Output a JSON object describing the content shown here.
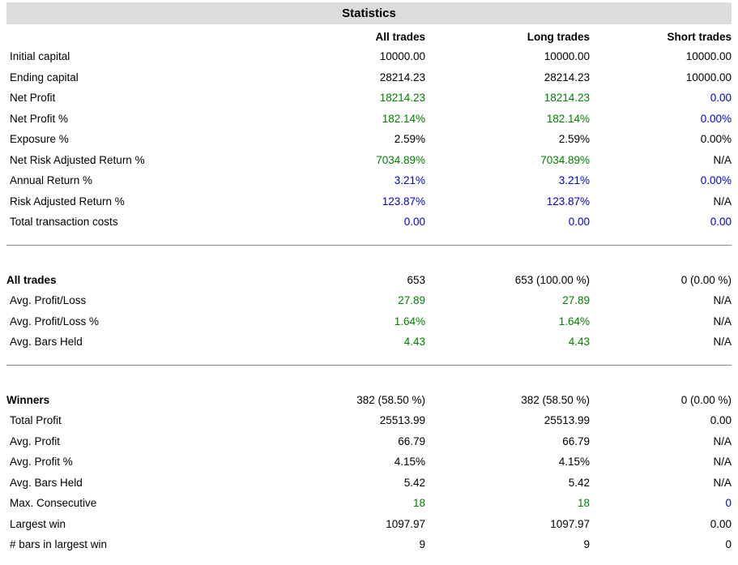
{
  "title": "Statistics",
  "colors": {
    "positive_green": "#008000",
    "neutral_blue": "#0000cc",
    "text_black": "#000000",
    "title_bar_bg": "#dcdcdc",
    "divider_gray": "#8c8c8c"
  },
  "columns": [
    "All trades",
    "Long trades",
    "Short trades"
  ],
  "sections": [
    {
      "rows": [
        {
          "label": "Initial capital",
          "bold": false,
          "cells": [
            [
              "10000.00",
              "black"
            ],
            [
              "10000.00",
              "black"
            ],
            [
              "10000.00",
              "black"
            ]
          ]
        },
        {
          "label": "Ending capital",
          "bold": false,
          "cells": [
            [
              "28214.23",
              "black"
            ],
            [
              "28214.23",
              "black"
            ],
            [
              "10000.00",
              "black"
            ]
          ]
        },
        {
          "label": "Net Profit",
          "bold": false,
          "cells": [
            [
              "18214.23",
              "green"
            ],
            [
              "18214.23",
              "green"
            ],
            [
              "0.00",
              "blue"
            ]
          ]
        },
        {
          "label": "Net Profit %",
          "bold": false,
          "cells": [
            [
              "182.14%",
              "green"
            ],
            [
              "182.14%",
              "green"
            ],
            [
              "0.00%",
              "blue"
            ]
          ]
        },
        {
          "label": "Exposure %",
          "bold": false,
          "cells": [
            [
              "2.59%",
              "black"
            ],
            [
              "2.59%",
              "black"
            ],
            [
              "0.00%",
              "black"
            ]
          ]
        },
        {
          "label": "Net Risk Adjusted Return %",
          "bold": false,
          "cells": [
            [
              "7034.89%",
              "green"
            ],
            [
              "7034.89%",
              "green"
            ],
            [
              "N/A",
              "black"
            ]
          ]
        },
        {
          "label": "Annual Return %",
          "bold": false,
          "cells": [
            [
              "3.21%",
              "blue"
            ],
            [
              "3.21%",
              "blue"
            ],
            [
              "0.00%",
              "blue"
            ]
          ]
        },
        {
          "label": "Risk Adjusted Return %",
          "bold": false,
          "cells": [
            [
              "123.87%",
              "blue"
            ],
            [
              "123.87%",
              "blue"
            ],
            [
              "N/A",
              "black"
            ]
          ]
        },
        {
          "label": "Total transaction costs",
          "bold": false,
          "cells": [
            [
              "0.00",
              "blue"
            ],
            [
              "0.00",
              "blue"
            ],
            [
              "0.00",
              "blue"
            ]
          ]
        }
      ]
    },
    {
      "rows": [
        {
          "label": "All trades",
          "bold": true,
          "cells": [
            [
              "653",
              "black"
            ],
            [
              "653 (100.00 %)",
              "black"
            ],
            [
              "0 (0.00 %)",
              "black"
            ]
          ]
        },
        {
          "label": "Avg. Profit/Loss",
          "bold": false,
          "cells": [
            [
              "27.89",
              "green"
            ],
            [
              "27.89",
              "green"
            ],
            [
              "N/A",
              "black"
            ]
          ]
        },
        {
          "label": "Avg. Profit/Loss %",
          "bold": false,
          "cells": [
            [
              "1.64%",
              "green"
            ],
            [
              "1.64%",
              "green"
            ],
            [
              "N/A",
              "black"
            ]
          ]
        },
        {
          "label": "Avg. Bars Held",
          "bold": false,
          "cells": [
            [
              "4.43",
              "green"
            ],
            [
              "4.43",
              "green"
            ],
            [
              "N/A",
              "black"
            ]
          ]
        }
      ]
    },
    {
      "rows": [
        {
          "label": "Winners",
          "bold": true,
          "cells": [
            [
              "382 (58.50 %)",
              "black"
            ],
            [
              "382 (58.50 %)",
              "black"
            ],
            [
              "0 (0.00 %)",
              "black"
            ]
          ]
        },
        {
          "label": "Total Profit",
          "bold": false,
          "cells": [
            [
              "25513.99",
              "black"
            ],
            [
              "25513.99",
              "black"
            ],
            [
              "0.00",
              "black"
            ]
          ]
        },
        {
          "label": "Avg. Profit",
          "bold": false,
          "cells": [
            [
              "66.79",
              "black"
            ],
            [
              "66.79",
              "black"
            ],
            [
              "N/A",
              "black"
            ]
          ]
        },
        {
          "label": "Avg. Profit %",
          "bold": false,
          "cells": [
            [
              "4.15%",
              "black"
            ],
            [
              "4.15%",
              "black"
            ],
            [
              "N/A",
              "black"
            ]
          ]
        },
        {
          "label": "Avg. Bars Held",
          "bold": false,
          "cells": [
            [
              "5.42",
              "black"
            ],
            [
              "5.42",
              "black"
            ],
            [
              "N/A",
              "black"
            ]
          ]
        },
        {
          "label": "Max. Consecutive",
          "bold": false,
          "cells": [
            [
              "18",
              "green"
            ],
            [
              "18",
              "green"
            ],
            [
              "0",
              "blue"
            ]
          ]
        },
        {
          "label": "Largest win",
          "bold": false,
          "cells": [
            [
              "1097.97",
              "black"
            ],
            [
              "1097.97",
              "black"
            ],
            [
              "0.00",
              "black"
            ]
          ]
        },
        {
          "label": "# bars in largest win",
          "bold": false,
          "cells": [
            [
              "9",
              "black"
            ],
            [
              "9",
              "black"
            ],
            [
              "0",
              "black"
            ]
          ]
        }
      ]
    }
  ]
}
